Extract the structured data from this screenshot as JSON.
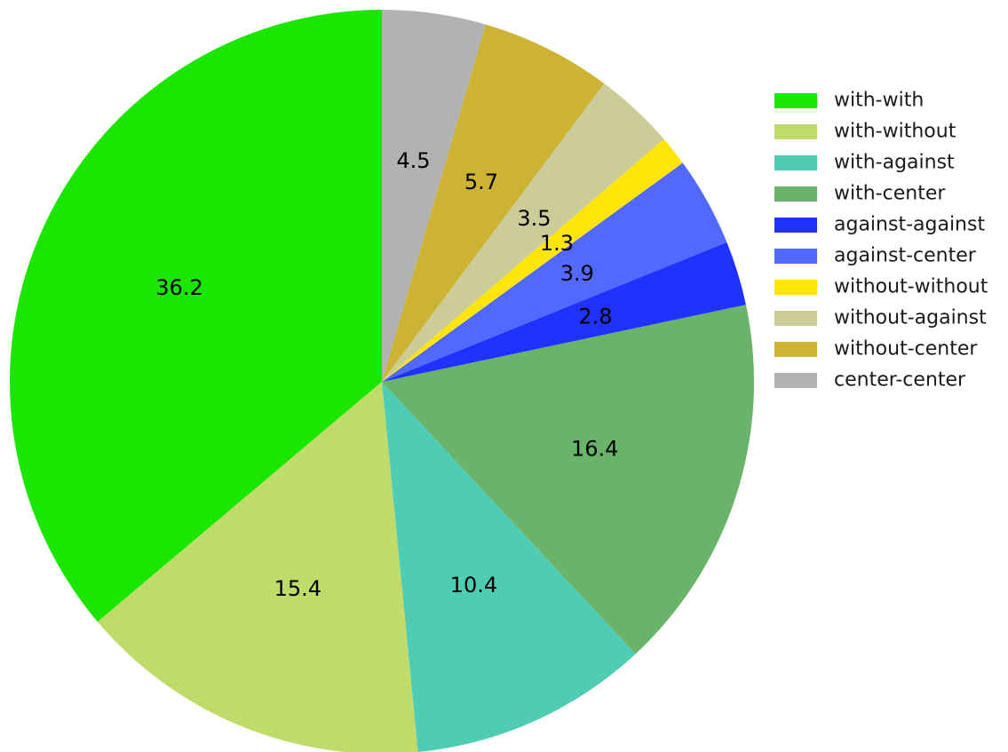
{
  "chart_data": {
    "type": "pie",
    "legend_position": "right",
    "start_angle_deg": 90,
    "direction": "counterclockwise",
    "slices": [
      {
        "name": "with-with",
        "value": 36.2,
        "label": "36.2",
        "color": "#1be600"
      },
      {
        "name": "with-without",
        "value": 15.4,
        "label": "15.4",
        "color": "#bfdb69"
      },
      {
        "name": "with-against",
        "value": 10.4,
        "label": "10.4",
        "color": "#4fcdb4"
      },
      {
        "name": "with-center",
        "value": 16.4,
        "label": "16.4",
        "color": "#69b36a"
      },
      {
        "name": "against-against",
        "value": 2.8,
        "label": "2.8",
        "color": "#1f32ff"
      },
      {
        "name": "against-center",
        "value": 3.9,
        "label": "3.9",
        "color": "#5368ff"
      },
      {
        "name": "without-without",
        "value": 1.3,
        "label": "1.3",
        "color": "#ffe508"
      },
      {
        "name": "without-against",
        "value": 3.5,
        "label": "3.5",
        "color": "#cccc99"
      },
      {
        "name": "without-center",
        "value": 5.7,
        "label": "5.7",
        "color": "#cdb334"
      },
      {
        "name": "center-center",
        "value": 4.5,
        "label": "4.5",
        "color": "#b2b2b2"
      }
    ]
  }
}
